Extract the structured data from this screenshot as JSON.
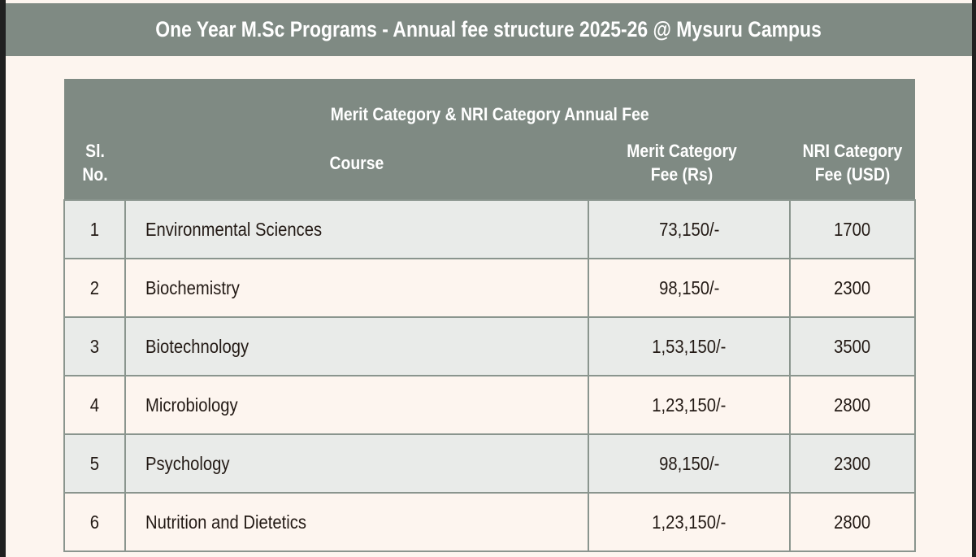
{
  "title": "One Year M.Sc Programs - Annual fee structure 2025-26 @ Mysuru Campus",
  "table": {
    "caption": "Merit Category & NRI Category Annual Fee",
    "headers": {
      "sl": "Sl. No.",
      "course": "Course",
      "merit": "Merit Category Fee (Rs)",
      "nri": "NRI Category Fee (USD)"
    },
    "rows": [
      {
        "sl": "1",
        "course": "Environmental Sciences",
        "merit": "73,150/-",
        "nri": "1700"
      },
      {
        "sl": "2",
        "course": "Biochemistry",
        "merit": "98,150/-",
        "nri": "2300"
      },
      {
        "sl": "3",
        "course": "Biotechnology",
        "merit": "1,53,150/-",
        "nri": "3500"
      },
      {
        "sl": "4",
        "course": "Microbiology",
        "merit": "1,23,150/-",
        "nri": "2800"
      },
      {
        "sl": "5",
        "course": "Psychology",
        "merit": "98,150/-",
        "nri": "2300"
      },
      {
        "sl": "6",
        "course": "Nutrition and Dietetics",
        "merit": "1,23,150/-",
        "nri": "2800"
      }
    ]
  }
}
